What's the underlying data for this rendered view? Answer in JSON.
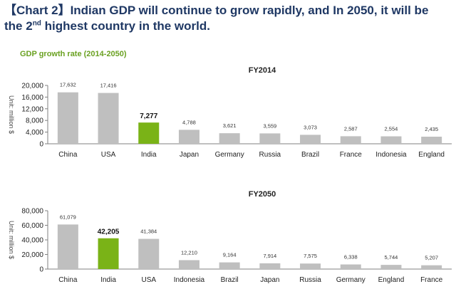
{
  "header": {
    "title_part1": "【Chart 2】Indian GDP will continue to grow rapidly, and In 2050, it will be",
    "title_part2": "the 2",
    "title_sup": "nd",
    "title_part3": " highest country in the world.",
    "subtitle": "GDP growth rate (2014-2050)"
  },
  "colors": {
    "title": "#1f3864",
    "subtitle": "#6aa121",
    "bar": "#bfbfbf",
    "highlight": "#7ab317"
  },
  "chart_data": [
    {
      "type": "bar",
      "title": "FY2014",
      "ylabel": "Unit: million $",
      "ylim": [
        0,
        20000
      ],
      "yticks": [
        "0",
        "4,000",
        "8,000",
        "12,000",
        "16,000",
        "20,000"
      ],
      "ytick_values": [
        0,
        4000,
        8000,
        12000,
        16000,
        20000
      ],
      "categories": [
        "China",
        "USA",
        "India",
        "Japan",
        "Germany",
        "Russia",
        "Brazil",
        "France",
        "Indonesia",
        "England"
      ],
      "values": [
        17632,
        17416,
        7277,
        4788,
        3621,
        3559,
        3073,
        2587,
        2554,
        2435
      ],
      "labels": [
        "17,632",
        "17,416",
        "7,277",
        "4,788",
        "3,621",
        "3,559",
        "3,073",
        "2,587",
        "2,554",
        "2,435"
      ],
      "highlight": "India",
      "grid": false
    },
    {
      "type": "bar",
      "title": "FY2050",
      "ylabel": "Unit: million $",
      "ylim": [
        0,
        80000
      ],
      "yticks": [
        "0",
        "20,000",
        "40,000",
        "60,000",
        "80,000"
      ],
      "ytick_values": [
        0,
        20000,
        40000,
        60000,
        80000
      ],
      "categories": [
        "China",
        "India",
        "USA",
        "Indonesia",
        "Brazil",
        "Japan",
        "Russia",
        "Germany",
        "England",
        "France"
      ],
      "values": [
        61079,
        42205,
        41384,
        12210,
        9164,
        7914,
        7575,
        6338,
        5744,
        5207
      ],
      "labels": [
        "61,079",
        "42,205",
        "41,384",
        "12,210",
        "9,164",
        "7,914",
        "7,575",
        "6,338",
        "5,744",
        "5,207"
      ],
      "highlight": "India",
      "grid": false
    }
  ]
}
